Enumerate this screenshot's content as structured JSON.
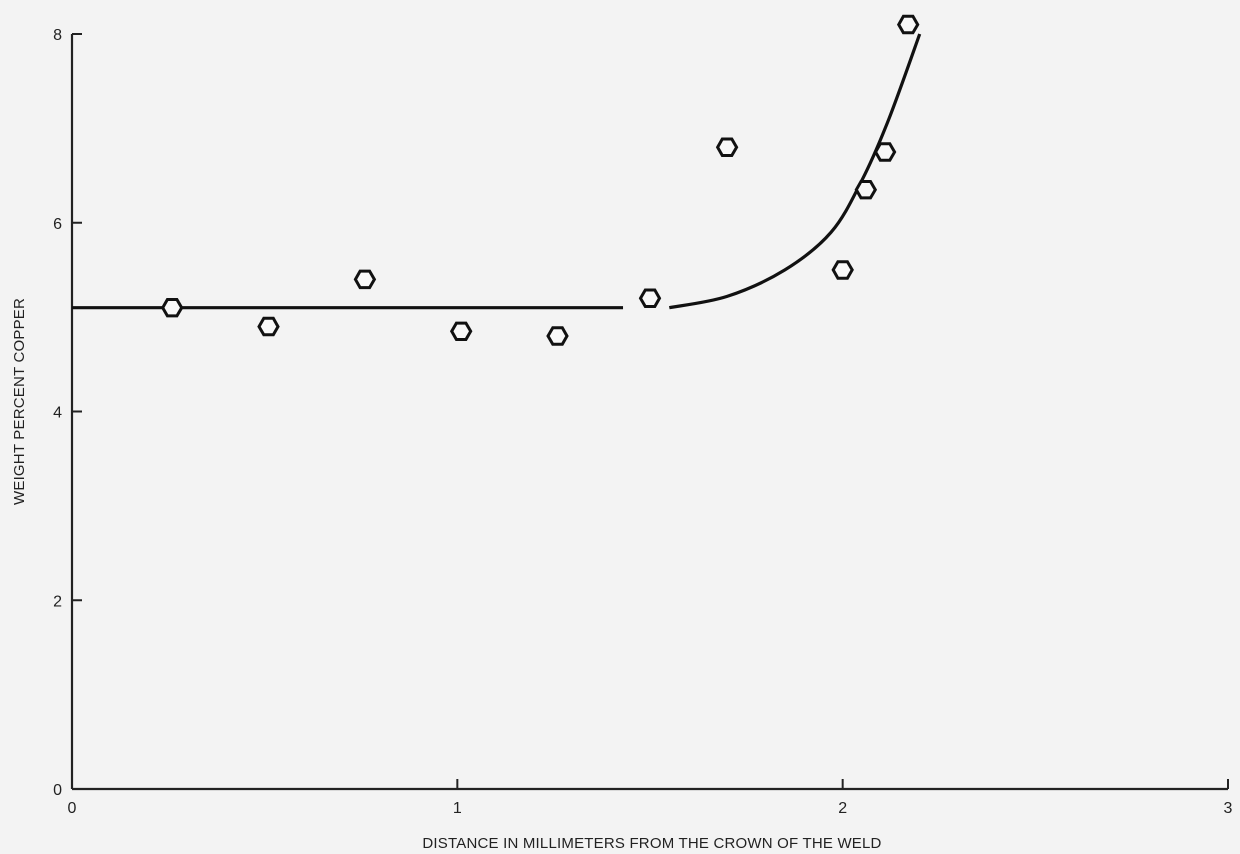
{
  "chart_data": {
    "type": "scatter",
    "title": "",
    "xlabel": "DISTANCE IN MILLIMETERS FROM THE CROWN OF THE WELD",
    "ylabel": "WEIGHT PERCENT COPPER",
    "xlim": [
      0,
      3
    ],
    "ylim": [
      0,
      8
    ],
    "x_ticks": [
      0,
      1,
      2,
      3
    ],
    "y_ticks": [
      0,
      2,
      4,
      6,
      8
    ],
    "x_tick_labels": [
      "0",
      "1",
      "2",
      "3"
    ],
    "y_tick_labels": [
      "0",
      "2",
      "4",
      "6",
      "8"
    ],
    "grid": false,
    "legend": "none",
    "series": [
      {
        "values": [
          {
            "x": 0.26,
            "y": 5.1
          },
          {
            "x": 0.51,
            "y": 4.9
          },
          {
            "x": 0.76,
            "y": 5.4
          },
          {
            "x": 1.01,
            "y": 4.85
          },
          {
            "x": 1.26,
            "y": 4.8
          },
          {
            "x": 1.5,
            "y": 5.2
          },
          {
            "x": 1.7,
            "y": 6.8
          },
          {
            "x": 2.0,
            "y": 5.5
          },
          {
            "x": 2.06,
            "y": 6.35
          },
          {
            "x": 2.11,
            "y": 6.75
          },
          {
            "x": 2.17,
            "y": 8.1
          }
        ]
      }
    ],
    "fit_line": {
      "flat": {
        "x_start": 0.0,
        "x_end": 1.43,
        "y": 5.1
      },
      "curve": [
        {
          "x": 1.55,
          "y": 5.1
        },
        {
          "x": 1.7,
          "y": 5.22
        },
        {
          "x": 1.85,
          "y": 5.5
        },
        {
          "x": 1.97,
          "y": 5.9
        },
        {
          "x": 2.05,
          "y": 6.45
        },
        {
          "x": 2.12,
          "y": 7.1
        },
        {
          "x": 2.2,
          "y": 8.0
        }
      ]
    },
    "colors": {
      "line": "#111111",
      "axis": "#222222",
      "background": "#f3f3f3"
    }
  }
}
